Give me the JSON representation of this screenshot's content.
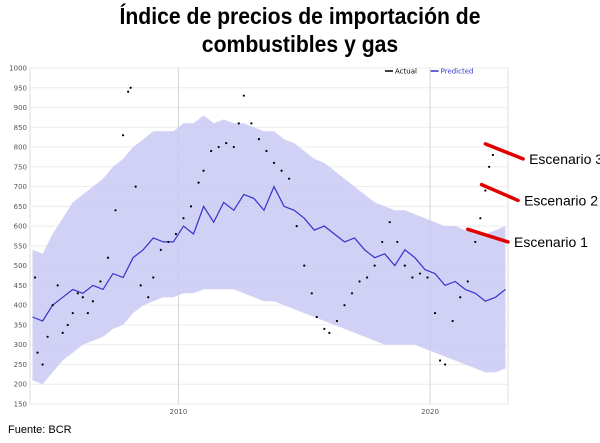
{
  "title_line1": "Índice de precios de importación de",
  "title_line2": "combustibles y gas",
  "source": "Fuente: BCR",
  "colors": {
    "band": "#c9c9f5",
    "predicted": "#3333cc",
    "actual": "#000000",
    "scenario": "#e00000"
  },
  "chart_data": {
    "type": "line",
    "x_ticks": [
      2010,
      2020
    ],
    "y_ticks": [
      150,
      200,
      250,
      300,
      350,
      400,
      450,
      500,
      550,
      600,
      650,
      700,
      750,
      800,
      850,
      900,
      950,
      1000
    ],
    "ylim": [
      150,
      1000
    ],
    "xlim": [
      2004.1,
      2023.1
    ],
    "grid": true,
    "legend": [
      {
        "name": "Actual",
        "color": "#000000"
      },
      {
        "name": "Predicted",
        "color": "#3333cc"
      }
    ],
    "predicted_x": [
      2004.2,
      2004.6,
      2005.0,
      2005.4,
      2005.8,
      2006.2,
      2006.6,
      2007.0,
      2007.4,
      2007.8,
      2008.2,
      2008.6,
      2009.0,
      2009.4,
      2009.8,
      2010.2,
      2010.6,
      2011.0,
      2011.4,
      2011.8,
      2012.2,
      2012.6,
      2013.0,
      2013.4,
      2013.8,
      2014.2,
      2014.6,
      2015.0,
      2015.4,
      2015.8,
      2016.2,
      2016.6,
      2017.0,
      2017.4,
      2017.8,
      2018.2,
      2018.6,
      2019.0,
      2019.4,
      2019.8,
      2020.2,
      2020.6,
      2021.0,
      2021.4,
      2021.8,
      2022.2,
      2022.6,
      2023.0
    ],
    "predicted": [
      370,
      360,
      400,
      420,
      440,
      430,
      450,
      440,
      480,
      470,
      520,
      540,
      570,
      560,
      560,
      600,
      580,
      650,
      610,
      660,
      640,
      680,
      670,
      640,
      700,
      650,
      640,
      620,
      590,
      600,
      580,
      560,
      570,
      540,
      520,
      530,
      500,
      540,
      520,
      490,
      480,
      450,
      460,
      440,
      430,
      410,
      420,
      440
    ],
    "band_upper": [
      540,
      530,
      580,
      620,
      660,
      680,
      700,
      720,
      750,
      770,
      800,
      820,
      840,
      840,
      840,
      860,
      860,
      880,
      860,
      870,
      860,
      860,
      850,
      840,
      840,
      820,
      810,
      790,
      770,
      760,
      740,
      720,
      700,
      680,
      660,
      650,
      640,
      640,
      630,
      620,
      610,
      600,
      600,
      590,
      580,
      580,
      590,
      600
    ],
    "band_lower": [
      210,
      200,
      230,
      260,
      280,
      300,
      310,
      320,
      340,
      350,
      380,
      400,
      410,
      420,
      420,
      430,
      430,
      440,
      440,
      440,
      440,
      430,
      420,
      410,
      410,
      400,
      390,
      380,
      370,
      360,
      350,
      340,
      330,
      320,
      310,
      300,
      300,
      300,
      300,
      290,
      280,
      270,
      260,
      250,
      240,
      230,
      230,
      240
    ],
    "actual": [
      [
        2004.3,
        470
      ],
      [
        2004.4,
        280
      ],
      [
        2004.6,
        250
      ],
      [
        2004.8,
        320
      ],
      [
        2005.0,
        400
      ],
      [
        2005.2,
        450
      ],
      [
        2005.4,
        330
      ],
      [
        2005.6,
        350
      ],
      [
        2005.8,
        380
      ],
      [
        2006.0,
        430
      ],
      [
        2006.2,
        420
      ],
      [
        2006.4,
        380
      ],
      [
        2006.6,
        410
      ],
      [
        2006.9,
        460
      ],
      [
        2007.2,
        520
      ],
      [
        2007.5,
        640
      ],
      [
        2007.8,
        830
      ],
      [
        2008.0,
        940
      ],
      [
        2008.1,
        950
      ],
      [
        2008.3,
        700
      ],
      [
        2008.5,
        450
      ],
      [
        2008.8,
        420
      ],
      [
        2009.0,
        470
      ],
      [
        2009.3,
        540
      ],
      [
        2009.6,
        560
      ],
      [
        2009.9,
        580
      ],
      [
        2010.2,
        620
      ],
      [
        2010.5,
        650
      ],
      [
        2010.8,
        710
      ],
      [
        2011.0,
        740
      ],
      [
        2011.3,
        790
      ],
      [
        2011.6,
        800
      ],
      [
        2011.9,
        810
      ],
      [
        2012.2,
        800
      ],
      [
        2012.4,
        860
      ],
      [
        2012.6,
        930
      ],
      [
        2012.9,
        860
      ],
      [
        2013.2,
        820
      ],
      [
        2013.5,
        790
      ],
      [
        2013.8,
        760
      ],
      [
        2014.1,
        740
      ],
      [
        2014.4,
        720
      ],
      [
        2014.7,
        600
      ],
      [
        2015.0,
        500
      ],
      [
        2015.3,
        430
      ],
      [
        2015.5,
        370
      ],
      [
        2015.8,
        340
      ],
      [
        2016.0,
        330
      ],
      [
        2016.3,
        360
      ],
      [
        2016.6,
        400
      ],
      [
        2016.9,
        430
      ],
      [
        2017.2,
        460
      ],
      [
        2017.5,
        470
      ],
      [
        2017.8,
        500
      ],
      [
        2018.1,
        560
      ],
      [
        2018.4,
        610
      ],
      [
        2018.7,
        560
      ],
      [
        2019.0,
        500
      ],
      [
        2019.3,
        470
      ],
      [
        2019.6,
        480
      ],
      [
        2019.9,
        470
      ],
      [
        2020.2,
        380
      ],
      [
        2020.4,
        260
      ],
      [
        2020.6,
        250
      ],
      [
        2020.9,
        360
      ],
      [
        2021.2,
        420
      ],
      [
        2021.5,
        460
      ],
      [
        2021.8,
        560
      ],
      [
        2022.0,
        620
      ],
      [
        2022.2,
        690
      ],
      [
        2022.35,
        750
      ],
      [
        2022.5,
        780
      ]
    ],
    "scenarios": [
      {
        "label": "Escenario 3",
        "from": [
          2022.2,
          808
        ],
        "to": [
          2023.7,
          770
        ]
      },
      {
        "label": "Escenario 2",
        "from": [
          2022.05,
          705
        ],
        "to": [
          2023.5,
          665
        ]
      },
      {
        "label": "Escenario 1",
        "from": [
          2021.5,
          592
        ],
        "to": [
          2023.1,
          560
        ]
      }
    ]
  }
}
